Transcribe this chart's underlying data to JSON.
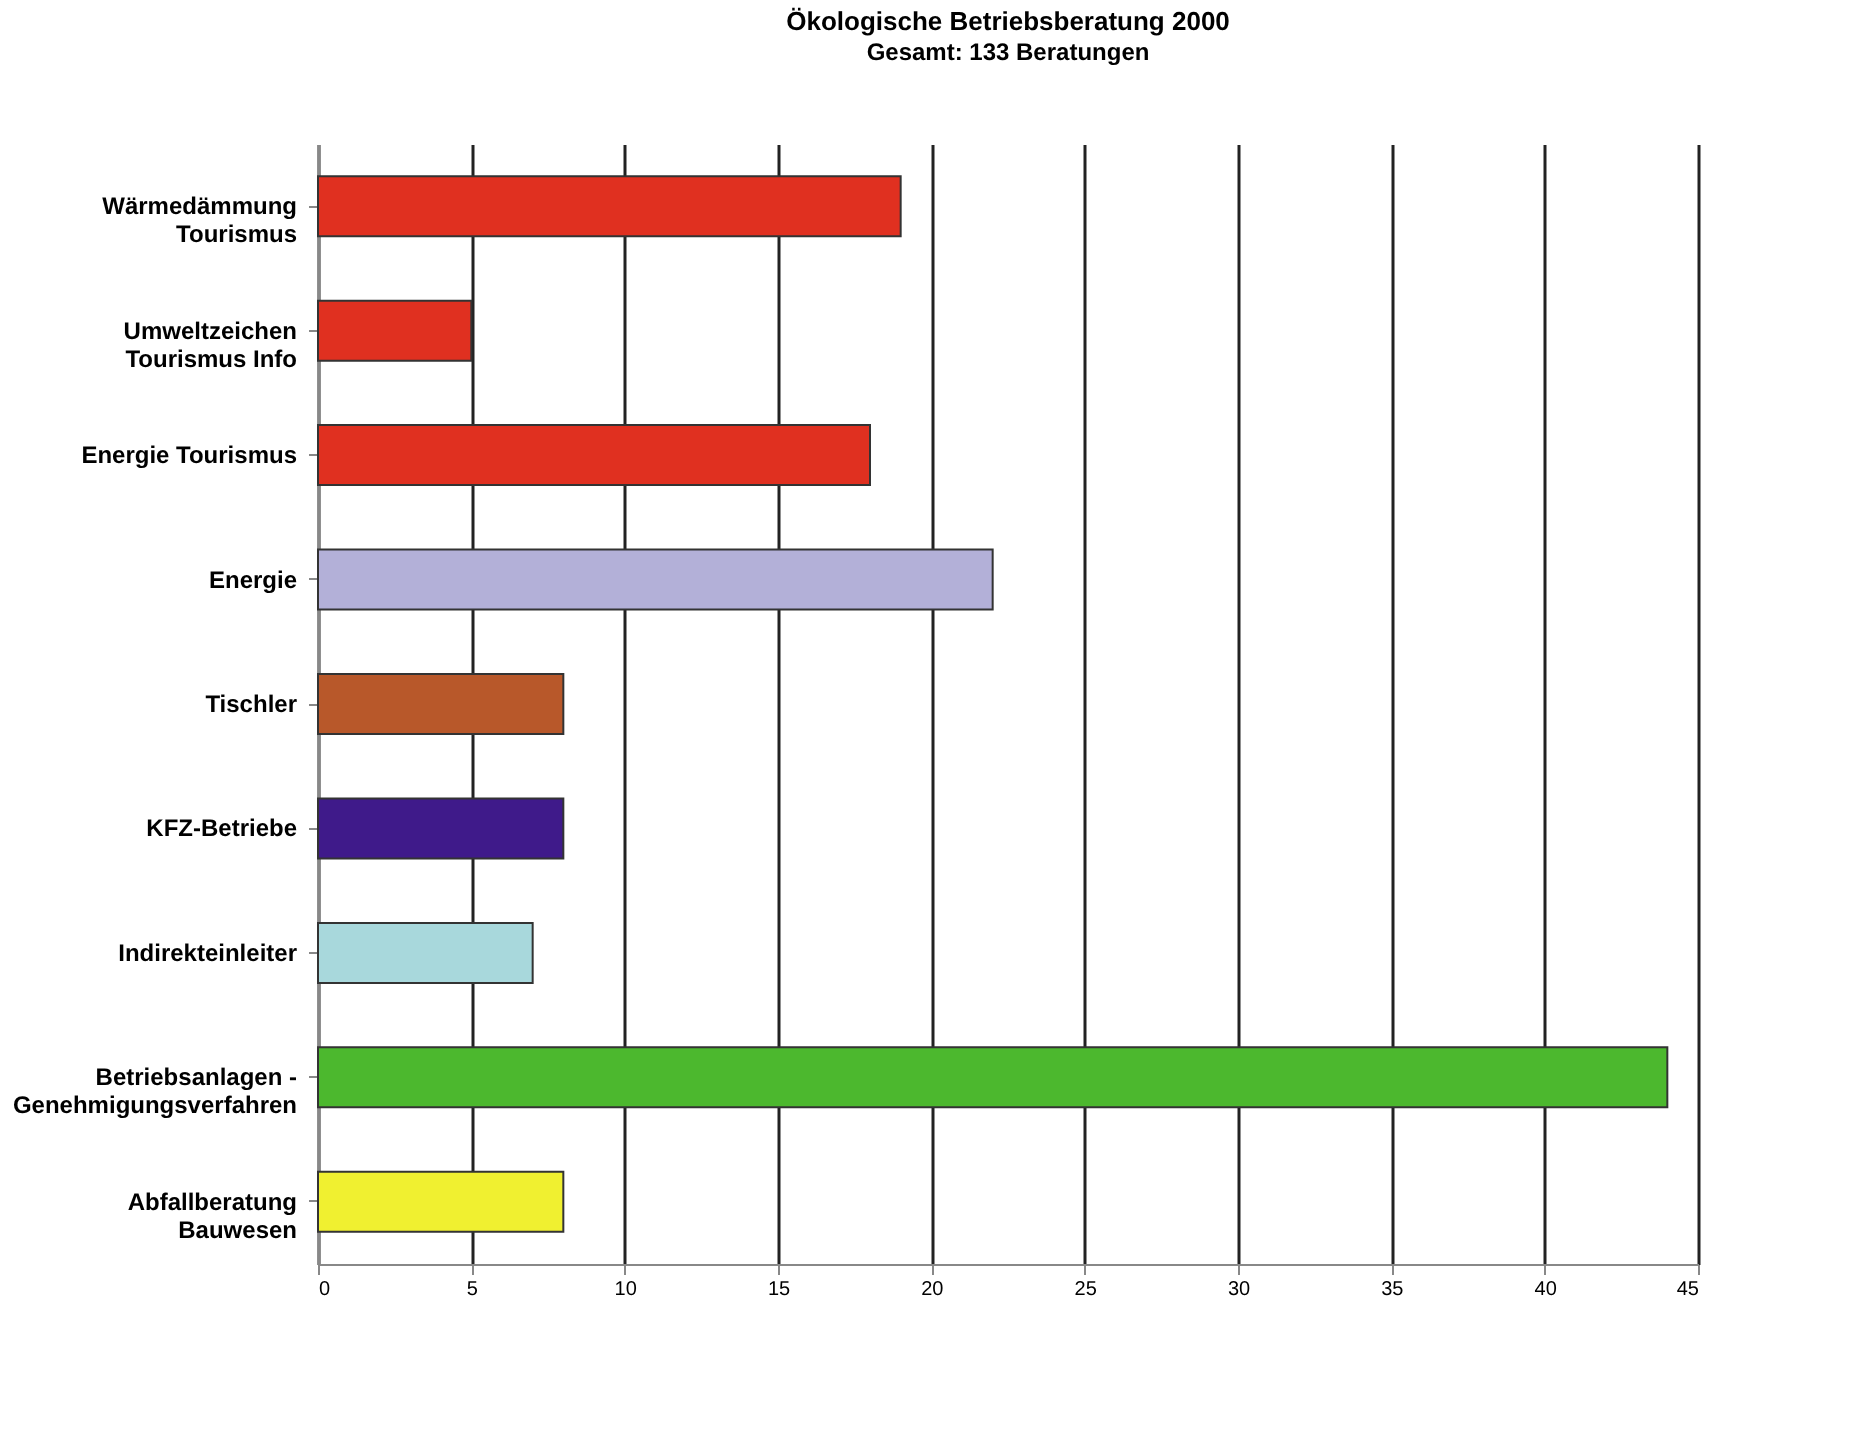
{
  "chart_data": {
    "type": "bar",
    "orientation": "horizontal",
    "title": "Ökologische Betriebsberatung 2000",
    "subtitle": "Gesamt: 133 Beratungen",
    "categories": [
      "Wärmedämmung\nTourismus",
      "Umweltzeichen\nTourismus  Info",
      "Energie Tourismus",
      "Energie",
      "Tischler",
      "KFZ-Betriebe",
      "Indirekteinleiter",
      "Betriebsanlagen -\nGenehmigungsverfahren",
      "Abfallberatung\nBauwesen"
    ],
    "values": [
      19,
      5,
      18,
      22,
      8,
      8,
      7,
      44,
      8
    ],
    "colors": [
      "#e03020",
      "#e03020",
      "#e03020",
      "#b3b0d8",
      "#b8582a",
      "#3f1a8a",
      "#a8d8dc",
      "#4cb82e",
      "#f0f030"
    ],
    "xlim": [
      0,
      45
    ],
    "xticks": [
      0,
      5,
      10,
      15,
      20,
      25,
      30,
      35,
      40,
      45
    ],
    "grid": "x"
  }
}
